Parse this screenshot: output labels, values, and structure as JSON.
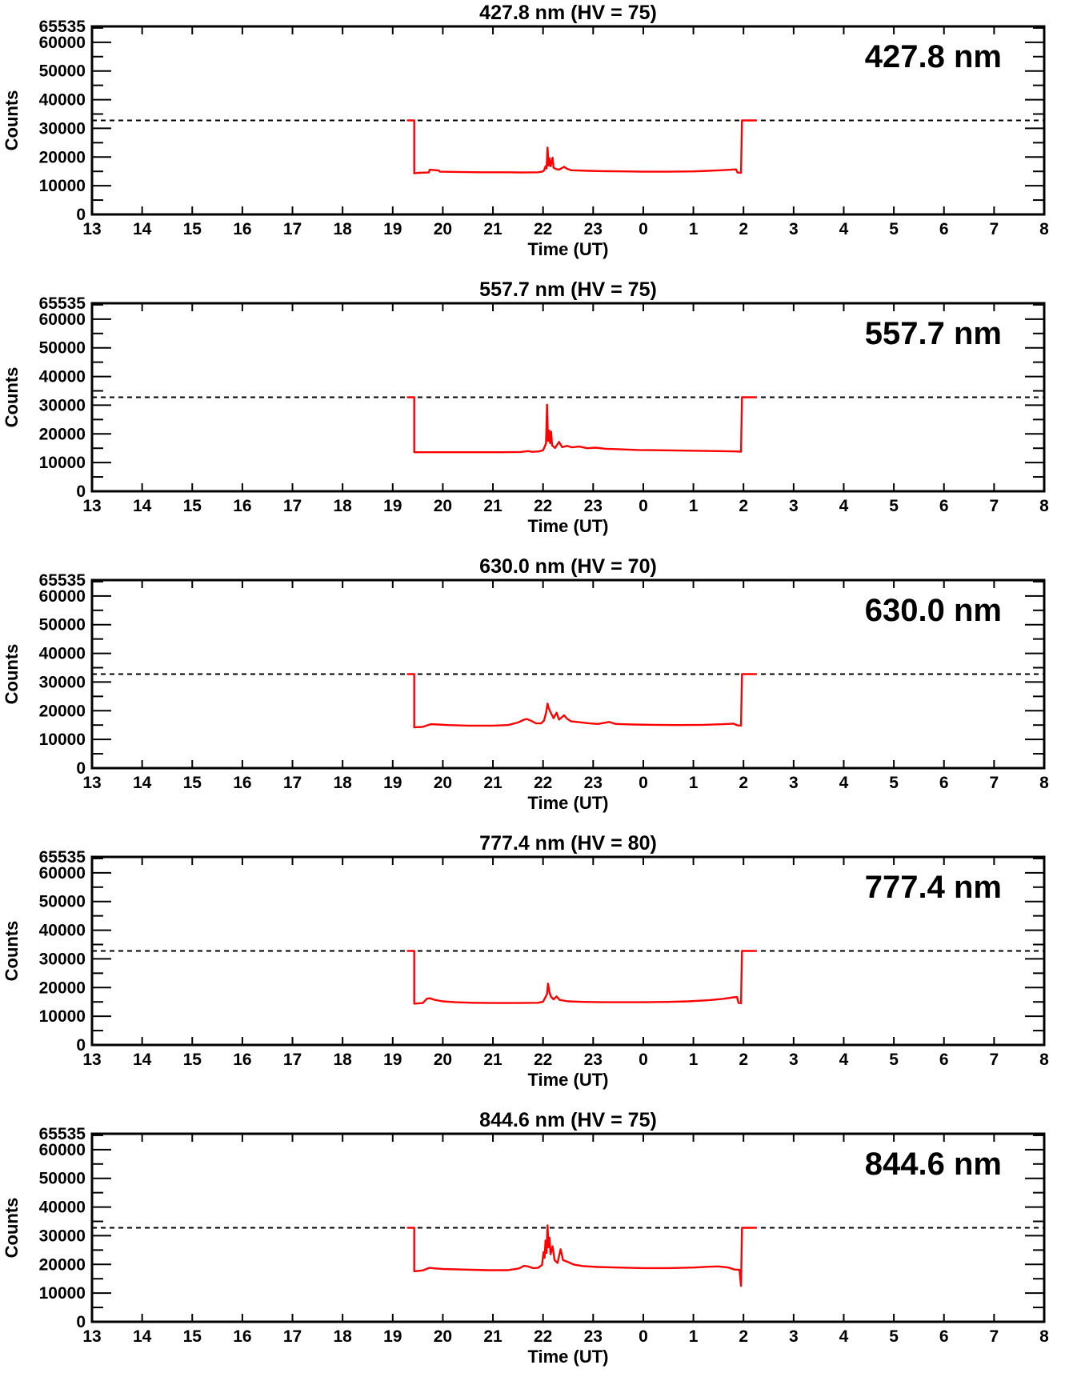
{
  "figure": {
    "background": "#ffffff",
    "description": "Five stacked photometer count time-series panels, one per emission wavelength"
  },
  "colors": {
    "trace": "#ff0000",
    "axis": "#000000",
    "threshold_line": "#000000",
    "background": "#ffffff",
    "text": "#000000"
  },
  "axes": {
    "x": {
      "title": "Time (UT)",
      "lim": [
        13,
        32
      ],
      "ticks": [
        [
          13,
          "13"
        ],
        [
          14,
          "14"
        ],
        [
          15,
          "15"
        ],
        [
          16,
          "16"
        ],
        [
          17,
          "17"
        ],
        [
          18,
          "18"
        ],
        [
          19,
          "19"
        ],
        [
          20,
          "20"
        ],
        [
          21,
          "21"
        ],
        [
          22,
          "22"
        ],
        [
          23,
          "23"
        ],
        [
          24,
          "0"
        ],
        [
          25,
          "1"
        ],
        [
          26,
          "2"
        ],
        [
          27,
          "3"
        ],
        [
          28,
          "4"
        ],
        [
          29,
          "5"
        ],
        [
          30,
          "6"
        ],
        [
          31,
          "7"
        ],
        [
          32,
          "8"
        ]
      ]
    },
    "y": {
      "title": "Counts",
      "lim": [
        0,
        65535
      ],
      "major_ticks": [
        [
          0,
          "0"
        ],
        [
          10000,
          "10000"
        ],
        [
          20000,
          "20000"
        ],
        [
          30000,
          "30000"
        ],
        [
          40000,
          "40000"
        ],
        [
          50000,
          "50000"
        ],
        [
          60000,
          "60000"
        ],
        [
          65535,
          "65535"
        ]
      ],
      "minor_ticks": [
        5000,
        15000,
        25000,
        35000,
        45000,
        55000,
        65000
      ]
    },
    "threshold": 32767
  },
  "chart_data": [
    {
      "type": "line",
      "title": "427.8 nm (HV = 75)",
      "annotation": "427.8 nm",
      "wavelength_nm": 427.8,
      "hv": 75,
      "xlabel": "Time (UT)",
      "ylabel": "Counts",
      "xlim": [
        13,
        32
      ],
      "ylim": [
        0,
        65535
      ],
      "threshold": 32767,
      "series": [
        {
          "name": "counts",
          "color": "#ff0000",
          "points": [
            [
              19.3,
              32767
            ],
            [
              19.43,
              32767
            ],
            [
              19.43,
              14300
            ],
            [
              19.5,
              14500
            ],
            [
              19.72,
              14600
            ],
            [
              19.74,
              15600
            ],
            [
              19.8,
              15500
            ],
            [
              19.92,
              15300
            ],
            [
              19.94,
              14900
            ],
            [
              20.3,
              14800
            ],
            [
              20.8,
              14700
            ],
            [
              21.3,
              14700
            ],
            [
              21.6,
              14600
            ],
            [
              21.9,
              14700
            ],
            [
              21.98,
              14900
            ],
            [
              22.02,
              15300
            ],
            [
              22.05,
              16800
            ],
            [
              22.07,
              16000
            ],
            [
              22.09,
              23300
            ],
            [
              22.11,
              17000
            ],
            [
              22.13,
              19600
            ],
            [
              22.15,
              16800
            ],
            [
              22.19,
              19800
            ],
            [
              22.21,
              16300
            ],
            [
              22.26,
              15800
            ],
            [
              22.32,
              15600
            ],
            [
              22.42,
              16600
            ],
            [
              22.48,
              15900
            ],
            [
              22.56,
              15400
            ],
            [
              22.7,
              15300
            ],
            [
              22.9,
              15200
            ],
            [
              23.2,
              15100
            ],
            [
              23.6,
              15000
            ],
            [
              24.0,
              14900
            ],
            [
              24.5,
              14900
            ],
            [
              25.0,
              15000
            ],
            [
              25.3,
              15200
            ],
            [
              25.55,
              15400
            ],
            [
              25.75,
              15600
            ],
            [
              25.85,
              15700
            ],
            [
              25.88,
              14600
            ],
            [
              25.95,
              14500
            ],
            [
              25.97,
              32767
            ],
            [
              26.25,
              32767
            ]
          ]
        }
      ]
    },
    {
      "type": "line",
      "title": "557.7 nm (HV = 75)",
      "annotation": "557.7 nm",
      "wavelength_nm": 557.7,
      "hv": 75,
      "xlabel": "Time (UT)",
      "ylabel": "Counts",
      "xlim": [
        13,
        32
      ],
      "ylim": [
        0,
        65535
      ],
      "threshold": 32767,
      "series": [
        {
          "name": "counts",
          "color": "#ff0000",
          "points": [
            [
              19.3,
              32767
            ],
            [
              19.43,
              32767
            ],
            [
              19.43,
              13600
            ],
            [
              20.0,
              13600
            ],
            [
              20.6,
              13600
            ],
            [
              21.2,
              13600
            ],
            [
              21.55,
              13700
            ],
            [
              21.7,
              14000
            ],
            [
              21.78,
              13750
            ],
            [
              21.92,
              13900
            ],
            [
              22.0,
              14300
            ],
            [
              22.04,
              15800
            ],
            [
              22.06,
              16800
            ],
            [
              22.08,
              30200
            ],
            [
              22.1,
              17500
            ],
            [
              22.12,
              21200
            ],
            [
              22.14,
              16800
            ],
            [
              22.16,
              20800
            ],
            [
              22.18,
              16000
            ],
            [
              22.24,
              15100
            ],
            [
              22.32,
              17200
            ],
            [
              22.38,
              15400
            ],
            [
              22.48,
              15800
            ],
            [
              22.58,
              15300
            ],
            [
              22.72,
              15600
            ],
            [
              22.88,
              15000
            ],
            [
              23.05,
              15200
            ],
            [
              23.25,
              14800
            ],
            [
              23.55,
              14600
            ],
            [
              23.9,
              14400
            ],
            [
              24.3,
              14300
            ],
            [
              24.7,
              14200
            ],
            [
              25.1,
              14100
            ],
            [
              25.5,
              14000
            ],
            [
              25.85,
              13900
            ],
            [
              25.95,
              13800
            ],
            [
              25.97,
              32767
            ],
            [
              26.25,
              32767
            ]
          ]
        }
      ]
    },
    {
      "type": "line",
      "title": "630.0 nm (HV = 70)",
      "annotation": "630.0 nm",
      "wavelength_nm": 630.0,
      "hv": 70,
      "xlabel": "Time (UT)",
      "ylabel": "Counts",
      "xlim": [
        13,
        32
      ],
      "ylim": [
        0,
        65535
      ],
      "threshold": 32767,
      "series": [
        {
          "name": "counts",
          "color": "#ff0000",
          "points": [
            [
              19.3,
              32767
            ],
            [
              19.43,
              32767
            ],
            [
              19.43,
              14200
            ],
            [
              19.6,
              14400
            ],
            [
              19.76,
              15300
            ],
            [
              19.9,
              15200
            ],
            [
              20.1,
              15000
            ],
            [
              20.5,
              14800
            ],
            [
              21.0,
              14800
            ],
            [
              21.3,
              15000
            ],
            [
              21.5,
              15900
            ],
            [
              21.62,
              16900
            ],
            [
              21.68,
              17100
            ],
            [
              21.76,
              16500
            ],
            [
              21.86,
              15600
            ],
            [
              21.96,
              15600
            ],
            [
              22.02,
              16600
            ],
            [
              22.06,
              19200
            ],
            [
              22.09,
              22500
            ],
            [
              22.11,
              21000
            ],
            [
              22.14,
              19800
            ],
            [
              22.17,
              18800
            ],
            [
              22.21,
              17400
            ],
            [
              22.27,
              19300
            ],
            [
              22.32,
              16900
            ],
            [
              22.42,
              18400
            ],
            [
              22.48,
              17200
            ],
            [
              22.56,
              16300
            ],
            [
              22.72,
              16000
            ],
            [
              22.92,
              15600
            ],
            [
              23.1,
              15400
            ],
            [
              23.32,
              16100
            ],
            [
              23.45,
              15400
            ],
            [
              23.8,
              15200
            ],
            [
              24.2,
              15100
            ],
            [
              24.7,
              15000
            ],
            [
              25.2,
              15100
            ],
            [
              25.6,
              15300
            ],
            [
              25.8,
              15500
            ],
            [
              25.88,
              14900
            ],
            [
              25.95,
              14800
            ],
            [
              25.97,
              32767
            ],
            [
              26.25,
              32767
            ]
          ]
        }
      ]
    },
    {
      "type": "line",
      "title": "777.4 nm (HV = 80)",
      "annotation": "777.4 nm",
      "wavelength_nm": 777.4,
      "hv": 80,
      "xlabel": "Time (UT)",
      "ylabel": "Counts",
      "xlim": [
        13,
        32
      ],
      "ylim": [
        0,
        65535
      ],
      "threshold": 32767,
      "series": [
        {
          "name": "counts",
          "color": "#ff0000",
          "points": [
            [
              19.3,
              32767
            ],
            [
              19.43,
              32767
            ],
            [
              19.43,
              14400
            ],
            [
              19.6,
              14600
            ],
            [
              19.68,
              16100
            ],
            [
              19.74,
              16300
            ],
            [
              19.84,
              15700
            ],
            [
              20.0,
              15200
            ],
            [
              20.25,
              14900
            ],
            [
              20.6,
              14700
            ],
            [
              21.0,
              14600
            ],
            [
              21.5,
              14600
            ],
            [
              21.9,
              14700
            ],
            [
              22.0,
              15100
            ],
            [
              22.05,
              16700
            ],
            [
              22.08,
              17800
            ],
            [
              22.1,
              21400
            ],
            [
              22.13,
              18300
            ],
            [
              22.16,
              16800
            ],
            [
              22.21,
              15900
            ],
            [
              22.27,
              16900
            ],
            [
              22.33,
              15700
            ],
            [
              22.5,
              15200
            ],
            [
              22.8,
              15000
            ],
            [
              23.2,
              14900
            ],
            [
              23.6,
              14900
            ],
            [
              24.0,
              14900
            ],
            [
              24.5,
              15000
            ],
            [
              24.9,
              15200
            ],
            [
              25.3,
              15600
            ],
            [
              25.6,
              16100
            ],
            [
              25.8,
              16600
            ],
            [
              25.87,
              16700
            ],
            [
              25.9,
              14700
            ],
            [
              25.95,
              14500
            ],
            [
              25.97,
              32767
            ],
            [
              26.25,
              32767
            ]
          ]
        }
      ]
    },
    {
      "type": "line",
      "title": "844.6 nm (HV = 75)",
      "annotation": "844.6 nm",
      "wavelength_nm": 844.6,
      "hv": 75,
      "xlabel": "Time (UT)",
      "ylabel": "Counts",
      "xlim": [
        13,
        32
      ],
      "ylim": [
        0,
        65535
      ],
      "threshold": 32767,
      "series": [
        {
          "name": "counts",
          "color": "#ff0000",
          "points": [
            [
              19.3,
              32767
            ],
            [
              19.43,
              32767
            ],
            [
              19.43,
              17600
            ],
            [
              19.6,
              17900
            ],
            [
              19.73,
              18800
            ],
            [
              19.85,
              18600
            ],
            [
              20.0,
              18400
            ],
            [
              20.4,
              18200
            ],
            [
              20.9,
              18000
            ],
            [
              21.3,
              18000
            ],
            [
              21.52,
              18600
            ],
            [
              21.62,
              19500
            ],
            [
              21.7,
              19300
            ],
            [
              21.8,
              18700
            ],
            [
              21.9,
              18800
            ],
            [
              21.98,
              19800
            ],
            [
              22.01,
              24300
            ],
            [
              22.03,
              22300
            ],
            [
              22.05,
              28300
            ],
            [
              22.07,
              24000
            ],
            [
              22.09,
              33600
            ],
            [
              22.11,
              26000
            ],
            [
              22.13,
              29300
            ],
            [
              22.15,
              23500
            ],
            [
              22.19,
              26300
            ],
            [
              22.23,
              21500
            ],
            [
              22.29,
              20500
            ],
            [
              22.35,
              25300
            ],
            [
              22.4,
              21500
            ],
            [
              22.5,
              20800
            ],
            [
              22.62,
              19900
            ],
            [
              22.8,
              19400
            ],
            [
              23.1,
              19100
            ],
            [
              23.5,
              18900
            ],
            [
              24.0,
              18700
            ],
            [
              24.5,
              18700
            ],
            [
              25.0,
              18900
            ],
            [
              25.3,
              19200
            ],
            [
              25.5,
              19300
            ],
            [
              25.7,
              18900
            ],
            [
              25.82,
              18200
            ],
            [
              25.92,
              18100
            ],
            [
              25.95,
              12500
            ],
            [
              25.97,
              32767
            ],
            [
              26.25,
              32767
            ]
          ]
        }
      ]
    }
  ]
}
